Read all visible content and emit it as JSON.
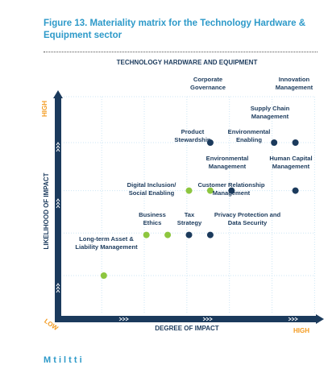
{
  "figure": {
    "title": "Figure 13. Materiality matrix for the Technology Hardware & Equipment sector",
    "next_heading_partial": "M   t   i   l    t   t   i  "
  },
  "chart_data": {
    "type": "scatter",
    "title": "TECHNOLOGY HARDWARE AND EQUIPMENT",
    "xlabel": "DEGREE OF IMPACT",
    "ylabel": "LIKELIHOOD OF IMPACT",
    "x_low_label": "LOW",
    "x_high_label": "HIGH",
    "y_high_label": "HIGH",
    "xlim": [
      0,
      6
    ],
    "ylim": [
      0,
      6
    ],
    "grid": true,
    "colors": {
      "green": "#8dc63f",
      "navy": "#1b3a5c",
      "axis": "#1b3a5c",
      "orange": "#f39a1e",
      "title_blue": "#2e9ac9",
      "grid": "#cde6f4"
    },
    "points": [
      {
        "label": "Long-term Asset &\nLiability Management",
        "x": 1.0,
        "y": 1.2,
        "color": "green",
        "anchor": "above"
      },
      {
        "label": "Business\nEthics",
        "x": 2.0,
        "y": 2.3,
        "color": "green",
        "anchor": "below-left"
      },
      {
        "label": "Digital Inclusion/\nSocial Enabling",
        "x": 2.0,
        "y": 2.3,
        "color": "green",
        "anchor": "none"
      },
      {
        "label": "Tax\nStrategy",
        "x": 2.5,
        "y": 2.3,
        "color": "green",
        "anchor": "below"
      },
      {
        "label": "Privacy Protection and\nData Security",
        "x": 3.5,
        "y": 2.3,
        "color": "navy",
        "anchor": "below-right"
      },
      {
        "label": "Customer Relationship\nManagement",
        "x": 3.0,
        "y": 2.3,
        "color": "navy",
        "anchor": "none"
      },
      {
        "label": "Product\nStewardship",
        "x": 3.0,
        "y": 3.5,
        "color": "green",
        "anchor": "none"
      },
      {
        "label": "Environmental\nManagement",
        "x": 3.5,
        "y": 3.5,
        "color": "green",
        "anchor": "none"
      },
      {
        "label": "Environmental\nEnabling",
        "x": 4.0,
        "y": 3.5,
        "color": "navy",
        "anchor": "none"
      },
      {
        "label": "Human Capital\nManagement",
        "x": 5.5,
        "y": 3.5,
        "color": "navy",
        "anchor": "none"
      },
      {
        "label": "Corporate\nGovernance",
        "x": 3.5,
        "y": 4.8,
        "color": "navy",
        "anchor": "above"
      },
      {
        "label": "Supply Chain\nManagement",
        "x": 5.0,
        "y": 4.8,
        "color": "navy",
        "anchor": "below"
      },
      {
        "label": "Innovation\nManagement",
        "x": 5.5,
        "y": 4.8,
        "color": "navy",
        "anchor": "above"
      }
    ]
  }
}
